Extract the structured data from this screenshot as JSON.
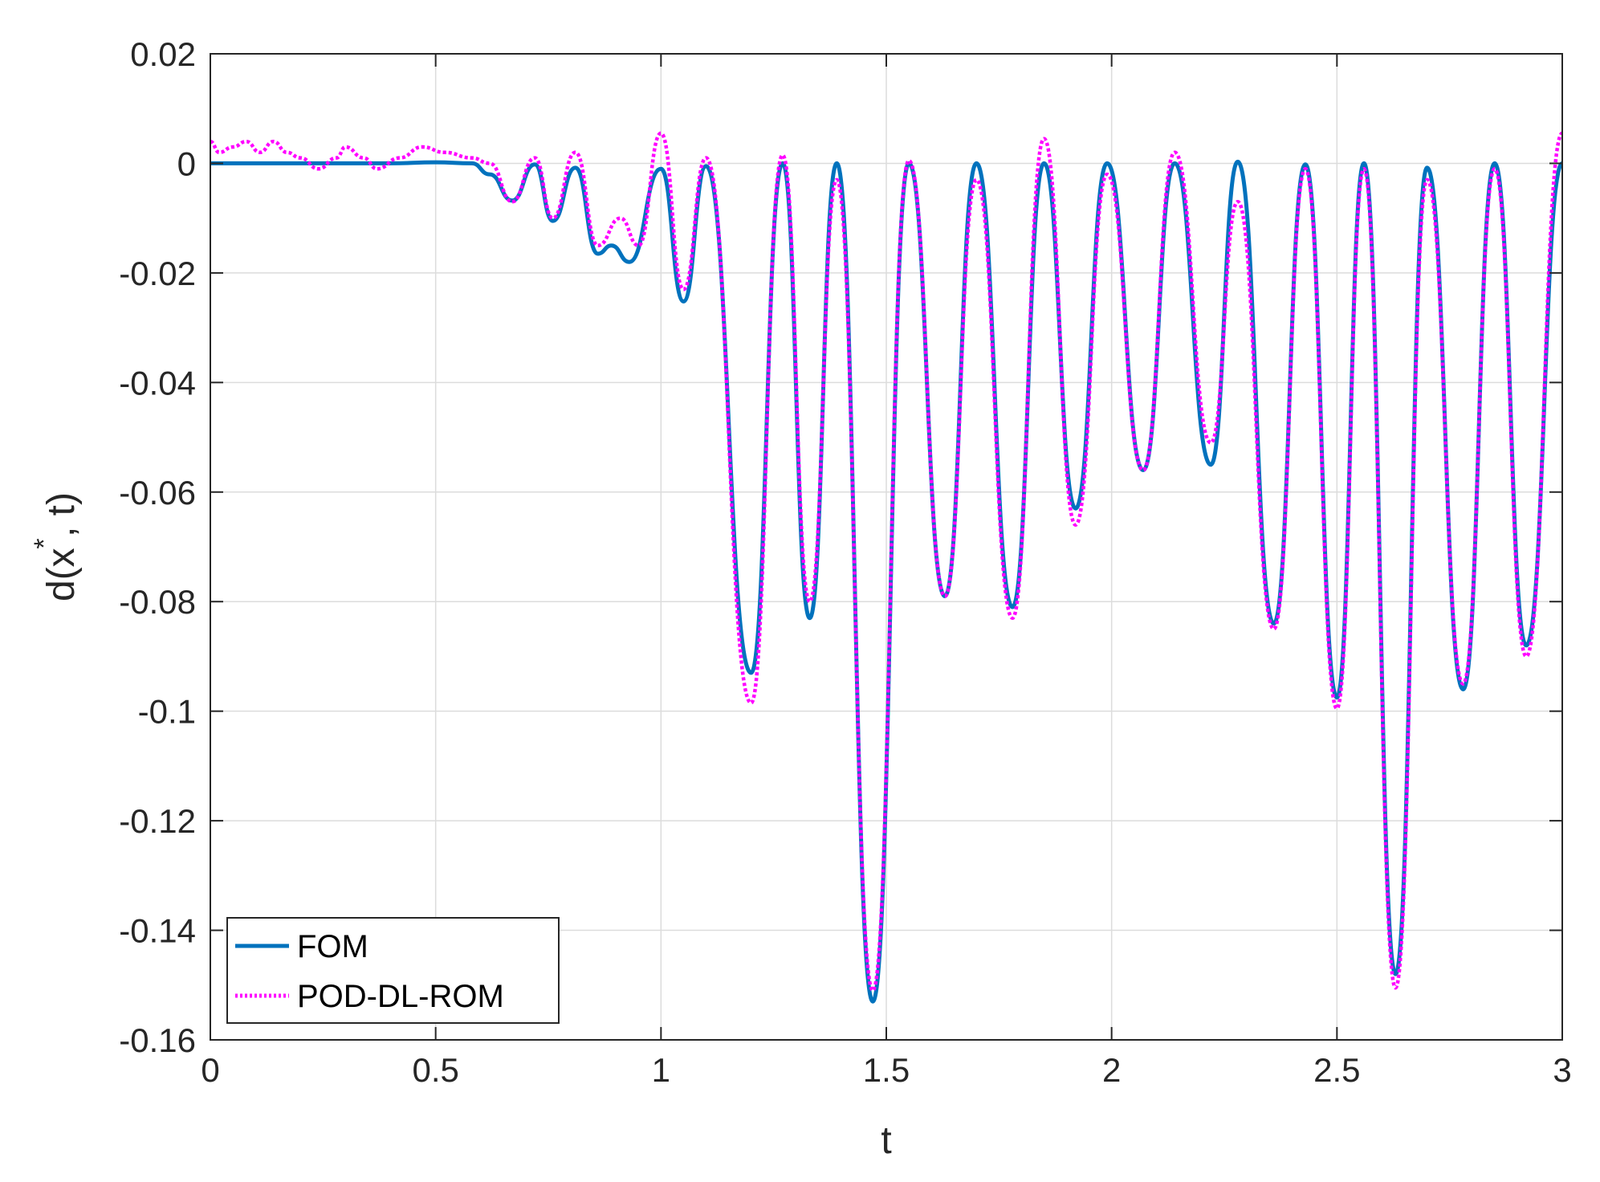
{
  "chart_data": {
    "type": "line",
    "xlabel": "t",
    "ylabel": "d(x , t)",
    "ylabel_superscript": "*",
    "xlim": [
      0,
      3
    ],
    "ylim": [
      -0.16,
      0.02
    ],
    "grid": true,
    "legend_position": "bottom-left",
    "x_ticks": [
      "0",
      "0.5",
      "1",
      "1.5",
      "2",
      "2.5",
      "3"
    ],
    "y_ticks": [
      "0.02",
      "0",
      "-0.02",
      "-0.04",
      "-0.06",
      "-0.08",
      "-0.1",
      "-0.12",
      "-0.14",
      "-0.16"
    ],
    "x_tick_values": [
      0,
      0.5,
      1,
      1.5,
      2,
      2.5,
      3
    ],
    "y_tick_values": [
      0.02,
      0,
      -0.02,
      -0.04,
      -0.06,
      -0.08,
      -0.1,
      -0.12,
      -0.14,
      -0.16
    ],
    "series": [
      {
        "name": "FOM",
        "color": "#0072BD",
        "style": "solid",
        "points": [
          [
            0.0,
            0.0
          ],
          [
            0.1,
            0.0
          ],
          [
            0.2,
            0.0
          ],
          [
            0.3,
            0.0
          ],
          [
            0.4,
            0.0
          ],
          [
            0.5,
            0.0002
          ],
          [
            0.58,
            0.0
          ],
          [
            0.62,
            -0.002
          ],
          [
            0.67,
            -0.0068
          ],
          [
            0.72,
            -0.0002
          ],
          [
            0.76,
            -0.0105
          ],
          [
            0.81,
            -0.0008
          ],
          [
            0.86,
            -0.0165
          ],
          [
            0.89,
            -0.015
          ],
          [
            0.93,
            -0.018
          ],
          [
            1.0,
            -0.001
          ],
          [
            1.05,
            -0.0252
          ],
          [
            1.1,
            -0.0005
          ],
          [
            1.2,
            -0.093
          ],
          [
            1.27,
            0.0
          ],
          [
            1.33,
            -0.083
          ],
          [
            1.39,
            0.0
          ],
          [
            1.47,
            -0.153
          ],
          [
            1.55,
            0.0
          ],
          [
            1.63,
            -0.079
          ],
          [
            1.7,
            0.0
          ],
          [
            1.78,
            -0.081
          ],
          [
            1.85,
            0.0
          ],
          [
            1.92,
            -0.063
          ],
          [
            1.99,
            0.0
          ],
          [
            2.07,
            -0.056
          ],
          [
            2.14,
            0.0
          ],
          [
            2.22,
            -0.055
          ],
          [
            2.28,
            0.0003
          ],
          [
            2.36,
            -0.084
          ],
          [
            2.43,
            -0.0002
          ],
          [
            2.5,
            -0.0975
          ],
          [
            2.56,
            0.0
          ],
          [
            2.63,
            -0.148
          ],
          [
            2.7,
            -0.0008
          ],
          [
            2.78,
            -0.096
          ],
          [
            2.85,
            0.0
          ],
          [
            2.92,
            -0.088
          ],
          [
            3.0,
            0.0
          ]
        ]
      },
      {
        "name": "POD-DL-ROM",
        "color": "#FF00FF",
        "style": "dotted",
        "points": [
          [
            0.0,
            0.004
          ],
          [
            0.02,
            0.002
          ],
          [
            0.05,
            0.003
          ],
          [
            0.08,
            0.004
          ],
          [
            0.11,
            0.002
          ],
          [
            0.14,
            0.004
          ],
          [
            0.17,
            0.002
          ],
          [
            0.2,
            0.001
          ],
          [
            0.24,
            -0.001
          ],
          [
            0.28,
            0.001
          ],
          [
            0.3,
            0.003
          ],
          [
            0.34,
            0.001
          ],
          [
            0.37,
            -0.001
          ],
          [
            0.42,
            0.001
          ],
          [
            0.47,
            0.003
          ],
          [
            0.52,
            0.002
          ],
          [
            0.58,
            0.001
          ],
          [
            0.62,
            0.0
          ],
          [
            0.67,
            -0.007
          ],
          [
            0.72,
            0.001
          ],
          [
            0.76,
            -0.01
          ],
          [
            0.81,
            0.002
          ],
          [
            0.86,
            -0.015
          ],
          [
            0.91,
            -0.01
          ],
          [
            0.95,
            -0.015
          ],
          [
            1.0,
            0.0055
          ],
          [
            1.05,
            -0.023
          ],
          [
            1.1,
            0.001
          ],
          [
            1.2,
            -0.0985
          ],
          [
            1.27,
            0.0015
          ],
          [
            1.33,
            -0.08
          ],
          [
            1.39,
            -0.003
          ],
          [
            1.47,
            -0.151
          ],
          [
            1.55,
            0.0005
          ],
          [
            1.63,
            -0.079
          ],
          [
            1.7,
            -0.003
          ],
          [
            1.78,
            -0.083
          ],
          [
            1.85,
            0.0045
          ],
          [
            1.92,
            -0.066
          ],
          [
            1.99,
            -0.002
          ],
          [
            2.07,
            -0.056
          ],
          [
            2.14,
            0.002
          ],
          [
            2.22,
            -0.051
          ],
          [
            2.28,
            -0.007
          ],
          [
            2.36,
            -0.085
          ],
          [
            2.43,
            -0.001
          ],
          [
            2.5,
            -0.0995
          ],
          [
            2.56,
            -0.001
          ],
          [
            2.63,
            -0.1505
          ],
          [
            2.7,
            -0.003
          ],
          [
            2.78,
            -0.095
          ],
          [
            2.85,
            -0.001
          ],
          [
            2.92,
            -0.09
          ],
          [
            3.0,
            0.0055
          ]
        ]
      }
    ]
  }
}
